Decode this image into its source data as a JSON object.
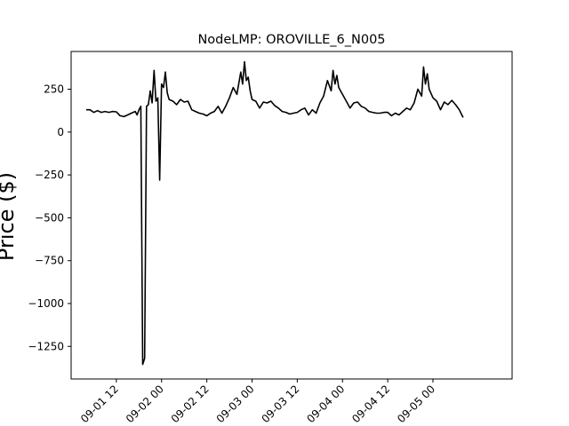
{
  "chart_data": {
    "type": "line",
    "title": "NodeLMP: OROVILLE_6_N005",
    "xlabel": "",
    "ylabel": "Price ($)",
    "ylim": [
      -1440,
      470
    ],
    "xlim": [
      "2023-09-01 00:00",
      "2023-09-05 21:00"
    ],
    "grid": false,
    "legend": "none",
    "line_color": "#000000",
    "x_ticks": [
      {
        "value": "2023-09-01 12:00",
        "label": "09-01 12"
      },
      {
        "value": "2023-09-02 00:00",
        "label": "09-02 00"
      },
      {
        "value": "2023-09-02 12:00",
        "label": "09-02 12"
      },
      {
        "value": "2023-09-03 00:00",
        "label": "09-03 00"
      },
      {
        "value": "2023-09-03 12:00",
        "label": "09-03 12"
      },
      {
        "value": "2023-09-04 00:00",
        "label": "09-04 00"
      },
      {
        "value": "2023-09-04 12:00",
        "label": "09-04 12"
      },
      {
        "value": "2023-09-05 00:00",
        "label": "09-05 00"
      }
    ],
    "y_ticks": [
      {
        "value": 250,
        "label": "250"
      },
      {
        "value": 0,
        "label": "0"
      },
      {
        "value": -250,
        "label": "−250"
      },
      {
        "value": -500,
        "label": "−500"
      },
      {
        "value": -750,
        "label": "−750"
      },
      {
        "value": -1000,
        "label": "−1000"
      },
      {
        "value": -1250,
        "label": "−1250"
      }
    ],
    "series": [
      {
        "x": [
          "2023-09-01 04:00",
          "2023-09-01 05:00",
          "2023-09-01 06:00",
          "2023-09-01 07:00",
          "2023-09-01 08:00",
          "2023-09-01 09:00",
          "2023-09-01 10:00",
          "2023-09-01 11:00",
          "2023-09-01 12:00",
          "2023-09-01 13:00",
          "2023-09-01 14:00",
          "2023-09-01 15:00",
          "2023-09-01 16:00",
          "2023-09-01 17:00",
          "2023-09-01 17:30",
          "2023-09-01 18:00",
          "2023-09-01 18:30",
          "2023-09-01 19:00",
          "2023-09-01 19:30",
          "2023-09-01 20:00",
          "2023-09-01 20:30",
          "2023-09-01 21:00",
          "2023-09-01 21:30",
          "2023-09-01 22:00",
          "2023-09-01 22:30",
          "2023-09-01 23:00",
          "2023-09-01 23:30",
          "2023-09-02 00:00",
          "2023-09-02 00:30",
          "2023-09-02 01:00",
          "2023-09-02 01:30",
          "2023-09-02 02:00",
          "2023-09-02 03:00",
          "2023-09-02 04:00",
          "2023-09-02 05:00",
          "2023-09-02 06:00",
          "2023-09-02 07:00",
          "2023-09-02 08:00",
          "2023-09-02 09:00",
          "2023-09-02 10:00",
          "2023-09-02 11:00",
          "2023-09-02 12:00",
          "2023-09-02 13:00",
          "2023-09-02 14:00",
          "2023-09-02 15:00",
          "2023-09-02 16:00",
          "2023-09-02 17:00",
          "2023-09-02 18:00",
          "2023-09-02 19:00",
          "2023-09-02 20:00",
          "2023-09-02 21:00",
          "2023-09-02 21:30",
          "2023-09-02 22:00",
          "2023-09-02 22:30",
          "2023-09-02 23:00",
          "2023-09-02 23:30",
          "2023-09-03 00:00",
          "2023-09-03 01:00",
          "2023-09-03 02:00",
          "2023-09-03 03:00",
          "2023-09-03 04:00",
          "2023-09-03 05:00",
          "2023-09-03 06:00",
          "2023-09-03 07:00",
          "2023-09-03 08:00",
          "2023-09-03 09:00",
          "2023-09-03 10:00",
          "2023-09-03 11:00",
          "2023-09-03 12:00",
          "2023-09-03 13:00",
          "2023-09-03 14:00",
          "2023-09-03 15:00",
          "2023-09-03 16:00",
          "2023-09-03 17:00",
          "2023-09-03 18:00",
          "2023-09-03 19:00",
          "2023-09-03 20:00",
          "2023-09-03 21:00",
          "2023-09-03 21:30",
          "2023-09-03 22:00",
          "2023-09-03 22:30",
          "2023-09-03 23:00",
          "2023-09-04 00:00",
          "2023-09-04 01:00",
          "2023-09-04 02:00",
          "2023-09-04 03:00",
          "2023-09-04 04:00",
          "2023-09-04 05:00",
          "2023-09-04 06:00",
          "2023-09-04 07:00",
          "2023-09-04 08:00",
          "2023-09-04 09:00",
          "2023-09-04 10:00",
          "2023-09-04 11:00",
          "2023-09-04 12:00",
          "2023-09-04 13:00",
          "2023-09-04 14:00",
          "2023-09-04 15:00",
          "2023-09-04 16:00",
          "2023-09-04 17:00",
          "2023-09-04 18:00",
          "2023-09-04 19:00",
          "2023-09-04 20:00",
          "2023-09-04 21:00",
          "2023-09-04 21:30",
          "2023-09-04 22:00",
          "2023-09-04 22:30",
          "2023-09-04 23:00",
          "2023-09-05 00:00",
          "2023-09-05 01:00",
          "2023-09-05 02:00",
          "2023-09-05 03:00",
          "2023-09-05 04:00",
          "2023-09-05 05:00",
          "2023-09-05 06:00",
          "2023-09-05 07:00",
          "2023-09-05 08:00"
        ],
        "y": [
          130,
          130,
          115,
          125,
          115,
          120,
          115,
          120,
          118,
          95,
          90,
          100,
          110,
          120,
          100,
          130,
          150,
          -1355,
          -1320,
          150,
          160,
          240,
          170,
          360,
          180,
          200,
          -280,
          280,
          260,
          350,
          230,
          190,
          180,
          160,
          190,
          175,
          180,
          130,
          120,
          110,
          105,
          95,
          110,
          120,
          150,
          110,
          150,
          200,
          260,
          220,
          350,
          280,
          410,
          300,
          320,
          240,
          190,
          180,
          140,
          175,
          170,
          180,
          155,
          140,
          120,
          115,
          105,
          110,
          115,
          130,
          140,
          100,
          130,
          110,
          170,
          210,
          300,
          240,
          360,
          280,
          330,
          260,
          220,
          180,
          140,
          170,
          175,
          150,
          140,
          120,
          115,
          110,
          110,
          115,
          115,
          95,
          110,
          100,
          120,
          140,
          130,
          170,
          250,
          210,
          380,
          280,
          340,
          250,
          200,
          180,
          130,
          175,
          160,
          185,
          160,
          130,
          85
        ]
      }
    ]
  }
}
